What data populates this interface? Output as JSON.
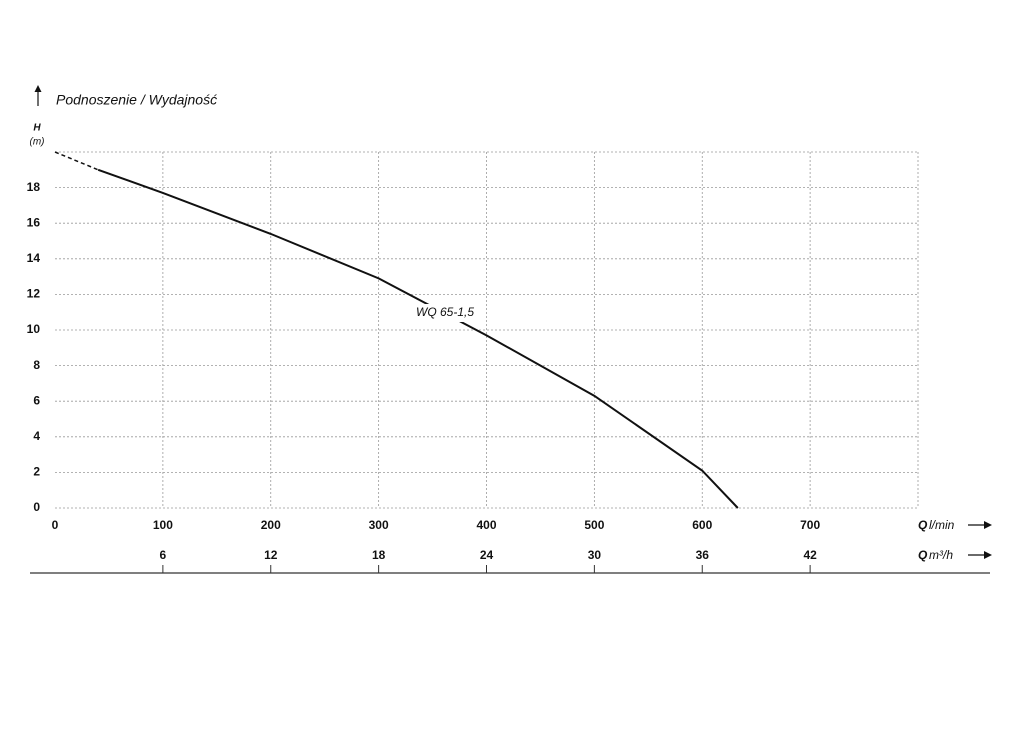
{
  "chart_data": {
    "type": "line",
    "title": "Podnoszenie / Wydajność",
    "y_label": "H",
    "y_unit": "(m)",
    "x_label": "Q",
    "x_unit": "l/min",
    "x2_label": "Q",
    "x2_unit": "m³/h",
    "xlim": [
      0,
      800
    ],
    "xticks": [
      0,
      100,
      200,
      300,
      400,
      500,
      600,
      700
    ],
    "x2lim": [
      0,
      48
    ],
    "x2ticks": [
      6,
      12,
      18,
      24,
      30,
      36,
      42
    ],
    "ylim": [
      0,
      20
    ],
    "yticks": [
      0,
      2,
      4,
      6,
      8,
      10,
      12,
      14,
      16,
      18
    ],
    "grid": true,
    "series": [
      {
        "name": "WQ 65-1,5",
        "color": "#111111",
        "x": [
          40,
          100,
          200,
          300,
          400,
          500,
          600,
          633
        ],
        "values": [
          19,
          17.7,
          15.4,
          12.9,
          9.7,
          6.3,
          2.1,
          0
        ]
      }
    ],
    "extension": {
      "style": "dashed",
      "color": "#111111",
      "x": [
        0,
        40
      ],
      "values": [
        20,
        19
      ]
    }
  }
}
